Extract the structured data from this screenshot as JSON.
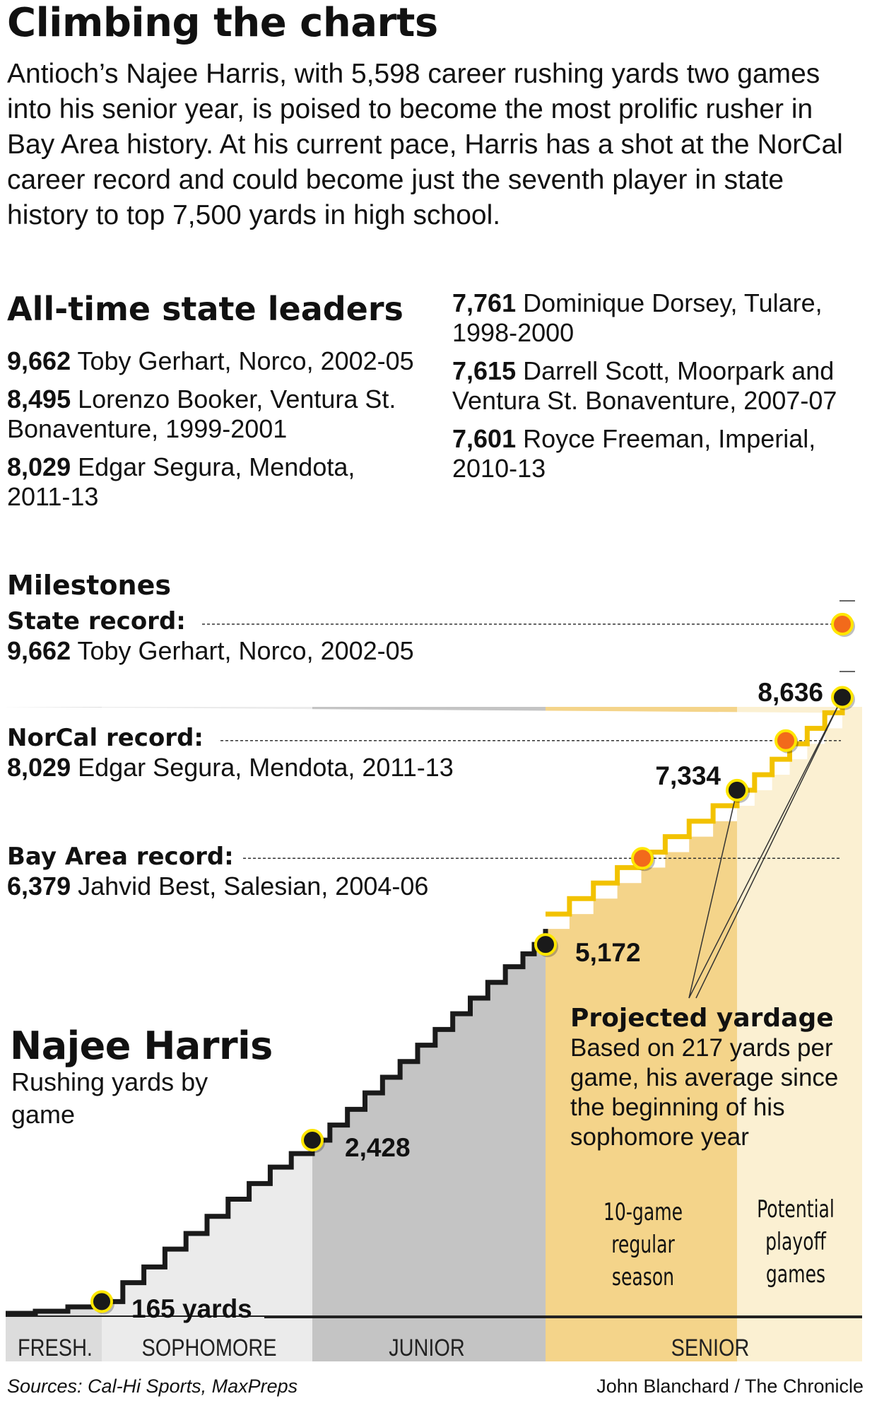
{
  "headline": "Climbing the charts",
  "intro": "Antioch’s Najee Harris, with 5,598 career rushing yards two games into his senior year, is poised to become the most prolific rusher in Bay Area history. At his current pace, Harris has a shot at the NorCal career record and could become just the seventh player in state history to top 7,500 yards in high school.",
  "leaders": {
    "title": "All-time state leaders",
    "left": [
      {
        "yards": "9,662",
        "text": "Toby Gerhart, Norco, 2002-05"
      },
      {
        "yards": "8,495",
        "text": "Lorenzo Booker, Ventura St. Bonaventure, 1999-2001"
      },
      {
        "yards": "8,029",
        "text": "Edgar Segura, Mendota, 2011-13"
      }
    ],
    "right": [
      {
        "yards": "7,761",
        "text": "Dominique Dorsey, Tulare, 1998-2000"
      },
      {
        "yards": "7,615",
        "text": "Darrell Scott, Moorpark and Ventura St. Bonaventure, 2007-07"
      },
      {
        "yards": "7,601",
        "text": "Royce Freeman, Imperial, 2010-13"
      }
    ]
  },
  "milestones": {
    "title": "Milestones",
    "records": [
      {
        "label": "State record:",
        "yards": "9,662",
        "holder": "Toby Gerhart, Norco, 2002-05"
      },
      {
        "label": "NorCal record:",
        "yards": "8,029",
        "holder": "Edgar Segura, Mendota, 2011-13"
      },
      {
        "label": "Bay Area record:",
        "yards": "6,379",
        "holder": "Jahvid Best, Salesian, 2004-06"
      }
    ]
  },
  "player": {
    "name": "Najee Harris",
    "subtitle": "Rushing yards by game"
  },
  "projection": {
    "title": "Projected yardage",
    "text": "Based on 217 yards per game, his average since the beginning of his sophomore year",
    "regular_note": "10-game regular season",
    "playoff_note": "Potential playoff games"
  },
  "colors": {
    "actual_line": "#1a1a1a",
    "projected_line": "#f2c200",
    "record_marker": "#f26a1b",
    "milestone_marker": "#1a1a1a",
    "fresh_band": "#dcdcdc",
    "soph_band": "#ebebeb",
    "junior_band": "#c4c4c4",
    "senior_band": "#f4d48a",
    "playoff_band": "#fbf0d2"
  },
  "chart_data": {
    "type": "line",
    "title": "Najee Harris",
    "subtitle": "Rushing yards by game",
    "ylabel": "",
    "ylim": [
      0,
      9662
    ],
    "seasons": [
      "FRESH.",
      "SOPHOMORE",
      "JUNIOR",
      "SENIOR"
    ],
    "series": [
      {
        "name": "Career rushing yards",
        "values": [
          0,
          30,
          90,
          165,
          430,
          650,
          900,
          1120,
          1360,
          1600,
          1820,
          2050,
          2240,
          2428,
          2640,
          2860,
          3090,
          3310,
          3530,
          3760,
          3980,
          4200,
          4420,
          4640,
          4860,
          5040,
          5172,
          5390,
          5598
        ]
      },
      {
        "name": "Projected yardage",
        "values": [
          5598,
          5815,
          6032,
          6249,
          6466,
          6683,
          6900,
          7117,
          7334,
          7551,
          7768,
          7985,
          8202,
          8419,
          8636
        ]
      }
    ],
    "milestones_labeled": [
      {
        "label": "165 yards",
        "value": 165
      },
      {
        "label": "2,428",
        "value": 2428
      },
      {
        "label": "5,172",
        "value": 5172
      },
      {
        "label": "7,334",
        "value": 7334
      },
      {
        "label": "8,636",
        "value": 8636
      }
    ],
    "records": [
      {
        "name": "Bay Area record",
        "value": 6379
      },
      {
        "name": "NorCal record",
        "value": 8029
      },
      {
        "name": "State record",
        "value": 9662
      }
    ]
  },
  "source": "Sources: Cal-Hi Sports, MaxPreps",
  "credit": "John Blanchard / The Chronicle"
}
